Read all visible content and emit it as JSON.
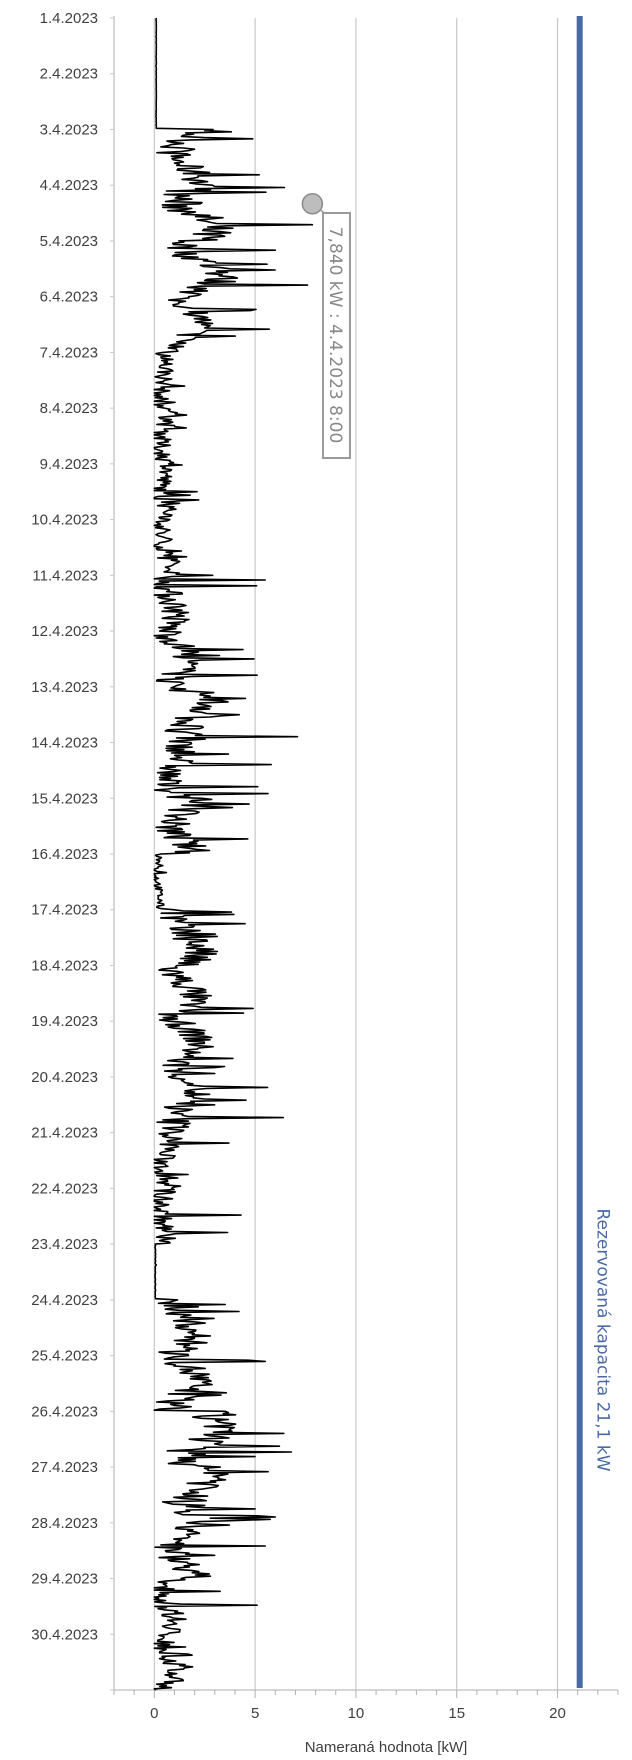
{
  "chart_data": {
    "type": "line",
    "orientation": "vertical-time",
    "xlabel": "Nameraná hodnota [kW]",
    "xlim": [
      -2,
      23
    ],
    "xticks": [
      "0",
      "5",
      "10",
      "15",
      "20"
    ],
    "ylabel": "",
    "ylim": [
      "2023-04-01 00:00",
      "2023-05-01 00:00"
    ],
    "yticks": [
      "1.4.2023",
      "2.4.2023",
      "3.4.2023",
      "4.4.2023",
      "5.4.2023",
      "6.4.2023",
      "7.4.2023",
      "8.4.2023",
      "9.4.2023",
      "10.4.2023",
      "11.4.2023",
      "12.4.2023",
      "13.4.2023",
      "14.4.2023",
      "15.4.2023",
      "16.4.2023",
      "17.4.2023",
      "18.4.2023",
      "19.4.2023",
      "20.4.2023",
      "21.4.2023",
      "22.4.2023",
      "23.4.2023",
      "24.4.2023",
      "25.4.2023",
      "26.4.2023",
      "27.4.2023",
      "28.4.2023",
      "29.4.2023",
      "30.4.2023"
    ],
    "grid": true,
    "series": [
      {
        "name": "",
        "color": "#000000",
        "daily_profile": [
          {
            "date": "1.4.2023",
            "base": 0.1,
            "peak": 0.1,
            "noise": 0.05
          },
          {
            "date": "2.4.2023",
            "base": 0.1,
            "peak": 0.1,
            "noise": 0.05
          },
          {
            "date": "3.4.2023",
            "base": 1.6,
            "peak": 5.2,
            "noise": 0.9
          },
          {
            "date": "4.4.2023",
            "base": 2.0,
            "peak": 7.84,
            "noise": 1.2
          },
          {
            "date": "5.4.2023",
            "base": 2.4,
            "peak": 7.6,
            "noise": 1.0
          },
          {
            "date": "6.4.2023",
            "base": 1.7,
            "peak": 5.7,
            "noise": 0.7
          },
          {
            "date": "7.4.2023",
            "base": 0.4,
            "peak": 1.5,
            "noise": 0.5
          },
          {
            "date": "8.4.2023",
            "base": 0.5,
            "peak": 1.6,
            "noise": 0.5
          },
          {
            "date": "9.4.2023",
            "base": 0.5,
            "peak": 2.2,
            "noise": 0.5
          },
          {
            "date": "10.4.2023",
            "base": 0.5,
            "peak": 1.6,
            "noise": 0.5
          },
          {
            "date": "11.4.2023",
            "base": 0.8,
            "peak": 5.5,
            "noise": 0.8
          },
          {
            "date": "12.4.2023",
            "base": 1.2,
            "peak": 5.1,
            "noise": 0.8
          },
          {
            "date": "13.4.2023",
            "base": 2.0,
            "peak": 7.1,
            "noise": 1.2
          },
          {
            "date": "14.4.2023",
            "base": 1.0,
            "peak": 5.8,
            "noise": 0.8
          },
          {
            "date": "15.4.2023",
            "base": 1.4,
            "peak": 4.7,
            "noise": 0.9
          },
          {
            "date": "16.4.2023",
            "base": 0.2,
            "peak": 0.6,
            "noise": 0.2
          },
          {
            "date": "17.4.2023",
            "base": 1.6,
            "peak": 4.5,
            "noise": 1.0
          },
          {
            "date": "18.4.2023",
            "base": 1.4,
            "peak": 4.9,
            "noise": 0.9
          },
          {
            "date": "19.4.2023",
            "base": 1.6,
            "peak": 3.9,
            "noise": 0.8
          },
          {
            "date": "20.4.2023",
            "base": 1.5,
            "peak": 6.4,
            "noise": 0.9
          },
          {
            "date": "21.4.2023",
            "base": 0.6,
            "peak": 3.7,
            "noise": 0.6
          },
          {
            "date": "22.4.2023",
            "base": 0.4,
            "peak": 4.3,
            "noise": 0.6
          },
          {
            "date": "23.4.2023",
            "base": 0.05,
            "peak": 0.1,
            "noise": 0.03
          },
          {
            "date": "24.4.2023",
            "base": 1.4,
            "peak": 4.2,
            "noise": 0.9
          },
          {
            "date": "25.4.2023",
            "base": 1.5,
            "peak": 5.5,
            "noise": 1.0
          },
          {
            "date": "26.4.2023",
            "base": 2.5,
            "peak": 6.8,
            "noise": 1.3
          },
          {
            "date": "27.4.2023",
            "base": 2.4,
            "peak": 6.0,
            "noise": 1.2
          },
          {
            "date": "28.4.2023",
            "base": 1.4,
            "peak": 5.5,
            "noise": 0.9
          },
          {
            "date": "29.4.2023",
            "base": 0.8,
            "peak": 5.1,
            "noise": 0.7
          },
          {
            "date": "30.4.2023",
            "base": 0.7,
            "peak": 1.9,
            "noise": 0.6
          }
        ]
      }
    ],
    "reference_line": {
      "label": "Rezervovaná kapacita 21,1 kW",
      "value": 21.1,
      "color": "#4a6aa5"
    },
    "annotation": {
      "text": "7,840 kW : 4.4.2023 8:00",
      "value": 7.84,
      "time": "2023-04-04 08:00",
      "color": "#999999"
    }
  }
}
